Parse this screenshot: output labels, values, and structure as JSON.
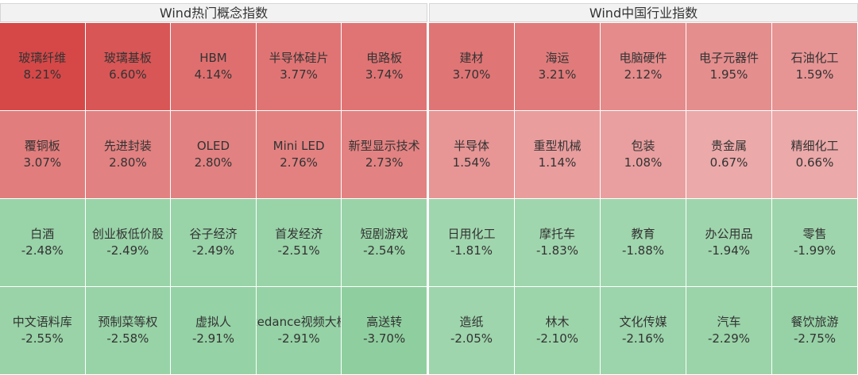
{
  "chart_data": [
    {
      "type": "heatmap",
      "title": "Wind热门概念指数",
      "unit": "%",
      "rows": 4,
      "cols": 5,
      "cells": [
        {
          "name": "玻璃纤维",
          "value": 8.21
        },
        {
          "name": "玻璃基板",
          "value": 6.6
        },
        {
          "name": "HBM",
          "value": 4.14
        },
        {
          "name": "半导体硅片",
          "value": 3.77
        },
        {
          "name": "电路板",
          "value": 3.74
        },
        {
          "name": "覆铜板",
          "value": 3.07
        },
        {
          "name": "先进封装",
          "value": 2.8
        },
        {
          "name": "OLED",
          "value": 2.8
        },
        {
          "name": "Mini LED",
          "value": 2.76
        },
        {
          "name": "新型显示技术",
          "value": 2.73
        },
        {
          "name": "白酒",
          "value": -2.48
        },
        {
          "name": "创业板低价股",
          "value": -2.49
        },
        {
          "name": "谷子经济",
          "value": -2.49
        },
        {
          "name": "首发经济",
          "value": -2.51
        },
        {
          "name": "短剧游戏",
          "value": -2.54
        },
        {
          "name": "中文语料库",
          "value": -2.55
        },
        {
          "name": "预制菜等权",
          "value": -2.58
        },
        {
          "name": "虚拟人",
          "value": -2.91
        },
        {
          "name": "Bytedance视频大模型",
          "value": -2.91
        },
        {
          "name": "高送转",
          "value": -3.7
        }
      ]
    },
    {
      "type": "heatmap",
      "title": "Wind中国行业指数",
      "unit": "%",
      "rows": 4,
      "cols": 5,
      "cells": [
        {
          "name": "建材",
          "value": 3.7
        },
        {
          "name": "海运",
          "value": 3.21
        },
        {
          "name": "电脑硬件",
          "value": 2.12
        },
        {
          "name": "电子元器件",
          "value": 1.95
        },
        {
          "name": "石油化工",
          "value": 1.59
        },
        {
          "name": "半导体",
          "value": 1.54
        },
        {
          "name": "重型机械",
          "value": 1.14
        },
        {
          "name": "包装",
          "value": 1.08
        },
        {
          "name": "贵金属",
          "value": 0.67
        },
        {
          "name": "精细化工",
          "value": 0.66
        },
        {
          "name": "日用化工",
          "value": -1.81
        },
        {
          "name": "摩托车",
          "value": -1.83
        },
        {
          "name": "教育",
          "value": -1.88
        },
        {
          "name": "办公用品",
          "value": -1.94
        },
        {
          "name": "零售",
          "value": -1.99
        },
        {
          "name": "造纸",
          "value": -2.05
        },
        {
          "name": "林木",
          "value": -2.1
        },
        {
          "name": "文化传媒",
          "value": -2.16
        },
        {
          "name": "汽车",
          "value": -2.29
        },
        {
          "name": "餐饮旅游",
          "value": -2.75
        }
      ]
    }
  ],
  "colors": {
    "positive_strong": "#d64848",
    "positive_weak": "#f4d0d0",
    "negative_weak": "#c8e6d0",
    "negative_strong": "#8fcf9f"
  }
}
